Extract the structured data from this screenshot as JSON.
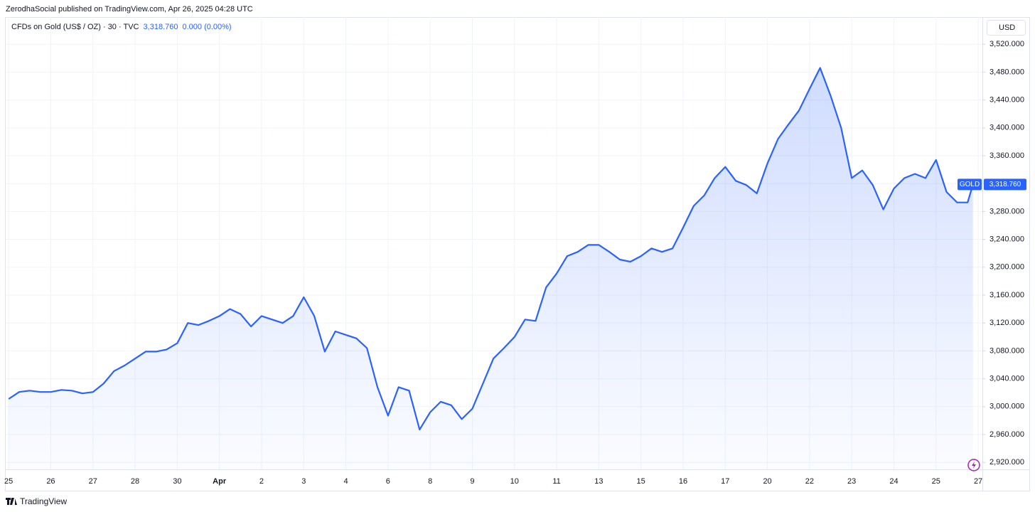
{
  "header": {
    "title": "ZerodhaSocial published on TradingView.com, Apr 26, 2025 04:28 UTC"
  },
  "footer": {
    "brand": "TradingView"
  },
  "chart_data": {
    "type": "area",
    "legend": {
      "symbol": "CFDs on Gold (US$ / OZ) · 30 · TVC",
      "price": "3,318.760",
      "change": "0.000 (0.00%)"
    },
    "currency": "USD",
    "price_tag": {
      "name": "GOLD",
      "value": 3318.76,
      "label": "3,318.760"
    },
    "xlim": [
      -0.07,
      23.1
    ],
    "ylim": [
      2910,
      3559
    ],
    "grid": true,
    "xticks": [
      {
        "value": 0,
        "label": "25"
      },
      {
        "value": 1,
        "label": "26"
      },
      {
        "value": 2,
        "label": "27"
      },
      {
        "value": 3,
        "label": "28"
      },
      {
        "value": 4,
        "label": "30"
      },
      {
        "value": 5,
        "label": "Apr"
      },
      {
        "value": 6,
        "label": "2"
      },
      {
        "value": 7,
        "label": "3"
      },
      {
        "value": 8,
        "label": "4"
      },
      {
        "value": 9,
        "label": "6"
      },
      {
        "value": 10,
        "label": "8"
      },
      {
        "value": 11,
        "label": "9"
      },
      {
        "value": 12,
        "label": "10"
      },
      {
        "value": 13,
        "label": "11"
      },
      {
        "value": 14,
        "label": "13"
      },
      {
        "value": 15,
        "label": "15"
      },
      {
        "value": 16,
        "label": "16"
      },
      {
        "value": 17,
        "label": "17"
      },
      {
        "value": 18,
        "label": "20"
      },
      {
        "value": 19,
        "label": "22"
      },
      {
        "value": 20,
        "label": "23"
      },
      {
        "value": 21,
        "label": "24"
      },
      {
        "value": 22,
        "label": "25"
      },
      {
        "value": 23,
        "label": "27"
      }
    ],
    "yticks": [
      {
        "value": 2920,
        "label": "2,920.000"
      },
      {
        "value": 2960,
        "label": "2,960.000"
      },
      {
        "value": 3000,
        "label": "3,000.000"
      },
      {
        "value": 3040,
        "label": "3,040.000"
      },
      {
        "value": 3080,
        "label": "3,080.000"
      },
      {
        "value": 3120,
        "label": "3,120.000"
      },
      {
        "value": 3160,
        "label": "3,160.000"
      },
      {
        "value": 3200,
        "label": "3,200.000"
      },
      {
        "value": 3240,
        "label": "3,240.000"
      },
      {
        "value": 3280,
        "label": "3,280.000"
      },
      {
        "value": 3320,
        "label": "3,320.000"
      },
      {
        "value": 3360,
        "label": "3,360.000"
      },
      {
        "value": 3400,
        "label": "3,400.000"
      },
      {
        "value": 3440,
        "label": "3,440.000"
      },
      {
        "value": 3480,
        "label": "3,480.000"
      },
      {
        "value": 3520,
        "label": "3,520.000"
      }
    ],
    "series": [
      {
        "name": "GOLD",
        "color": "#2962ff",
        "x": [
          0,
          0.25,
          0.5,
          0.75,
          1,
          1.25,
          1.5,
          1.75,
          2,
          2.25,
          2.5,
          2.75,
          3,
          3.25,
          3.5,
          3.75,
          4,
          4.25,
          4.5,
          4.75,
          5,
          5.25,
          5.5,
          5.75,
          6,
          6.25,
          6.5,
          6.75,
          7,
          7.25,
          7.5,
          7.75,
          8,
          8.25,
          8.5,
          8.75,
          9,
          9.25,
          9.5,
          9.75,
          10,
          10.25,
          10.5,
          10.75,
          11,
          11.25,
          11.5,
          11.75,
          12,
          12.25,
          12.5,
          12.75,
          13,
          13.25,
          13.5,
          13.75,
          14,
          14.25,
          14.5,
          14.75,
          15,
          15.25,
          15.5,
          15.75,
          16,
          16.25,
          16.5,
          16.75,
          17,
          17.25,
          17.5,
          17.75,
          18,
          18.25,
          18.5,
          18.75,
          19,
          19.25,
          19.5,
          19.75,
          20,
          20.25,
          20.5,
          20.75,
          21,
          21.25,
          21.5,
          21.75,
          22,
          22.25,
          22.5,
          22.75,
          22.875
        ],
        "values": [
          3011,
          3021,
          3023,
          3021,
          3021,
          3024,
          3023,
          3019,
          3021,
          3033,
          3051,
          3059,
          3069,
          3079,
          3079,
          3082,
          3091,
          3120,
          3117,
          3123,
          3130,
          3140,
          3133,
          3115,
          3130,
          3125,
          3120,
          3130,
          3157,
          3130,
          3079,
          3108,
          3103,
          3098,
          3084,
          3028,
          2987,
          3028,
          3023,
          2967,
          2992,
          3007,
          3002,
          2982,
          2997,
          3033,
          3069,
          3084,
          3100,
          3125,
          3123,
          3171,
          3191,
          3216,
          3222,
          3232,
          3232,
          3222,
          3211,
          3208,
          3216,
          3227,
          3222,
          3227,
          3257,
          3288,
          3303,
          3328,
          3344,
          3324,
          3318,
          3306,
          3349,
          3384,
          3405,
          3425,
          3456,
          3486,
          3446,
          3400,
          3328,
          3339,
          3318,
          3283,
          3313,
          3328,
          3334,
          3328,
          3354,
          3308,
          3293,
          3293,
          3318.76
        ]
      }
    ]
  }
}
